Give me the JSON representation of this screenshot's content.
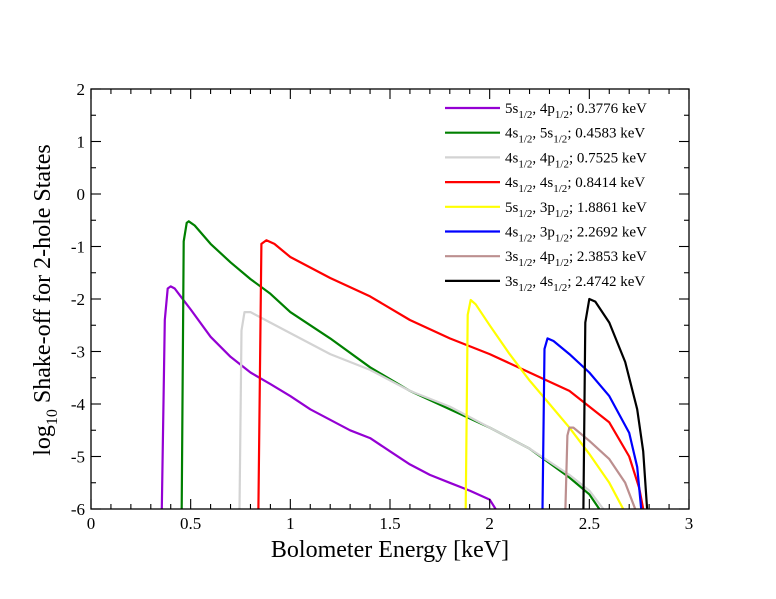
{
  "chart_data": {
    "type": "line",
    "xlabel": "Bolometer Energy  [keV]",
    "ylabel": "log10 Shake-off for 2-hole  States",
    "xlim": [
      0,
      3
    ],
    "ylim": [
      -6,
      2
    ],
    "x_ticks": [
      "0",
      "0.5",
      "1",
      "1.5",
      "2",
      "2.5",
      "3"
    ],
    "y_ticks": [
      "2",
      "1",
      "0",
      "-1",
      "-2",
      "-3",
      "-4",
      "-5",
      "-6"
    ],
    "grid": false,
    "legend_position": "top-right",
    "series": [
      {
        "name": "5s1/2, 4p1/2; 0.3776 keV",
        "label": {
          "a": "5s",
          "s1": "1/2",
          "b": ", 4p",
          "s2": "1/2",
          "c": "; 0.3776 keV"
        },
        "color": "#9400d3",
        "points": [
          [
            0.355,
            -6.0
          ],
          [
            0.37,
            -2.4
          ],
          [
            0.385,
            -1.8
          ],
          [
            0.4,
            -1.76
          ],
          [
            0.42,
            -1.8
          ],
          [
            0.45,
            -1.95
          ],
          [
            0.5,
            -2.2
          ],
          [
            0.6,
            -2.72
          ],
          [
            0.7,
            -3.1
          ],
          [
            0.8,
            -3.4
          ],
          [
            0.9,
            -3.62
          ],
          [
            1.0,
            -3.85
          ],
          [
            1.1,
            -4.1
          ],
          [
            1.2,
            -4.3
          ],
          [
            1.3,
            -4.5
          ],
          [
            1.4,
            -4.65
          ],
          [
            1.5,
            -4.9
          ],
          [
            1.6,
            -5.15
          ],
          [
            1.7,
            -5.35
          ],
          [
            1.8,
            -5.5
          ],
          [
            1.9,
            -5.65
          ],
          [
            2.0,
            -5.82
          ],
          [
            2.03,
            -6.0
          ]
        ]
      },
      {
        "name": "4s1/2, 5s1/2; 0.4583 keV",
        "label": {
          "a": "4s",
          "s1": "1/2",
          "b": ", 5s",
          "s2": "1/2",
          "c": "; 0.4583 keV"
        },
        "color": "#008000",
        "points": [
          [
            0.455,
            -6.0
          ],
          [
            0.465,
            -0.9
          ],
          [
            0.48,
            -0.55
          ],
          [
            0.49,
            -0.52
          ],
          [
            0.52,
            -0.6
          ],
          [
            0.6,
            -0.95
          ],
          [
            0.7,
            -1.3
          ],
          [
            0.8,
            -1.62
          ],
          [
            0.9,
            -1.9
          ],
          [
            1.0,
            -2.25
          ],
          [
            1.2,
            -2.75
          ],
          [
            1.4,
            -3.3
          ],
          [
            1.6,
            -3.75
          ],
          [
            1.8,
            -4.1
          ],
          [
            2.0,
            -4.45
          ],
          [
            2.2,
            -4.85
          ],
          [
            2.4,
            -5.4
          ],
          [
            2.5,
            -5.72
          ],
          [
            2.55,
            -6.0
          ]
        ]
      },
      {
        "name": "4s1/2, 4p1/2; 0.7525 keV",
        "label": {
          "a": "4s",
          "s1": "1/2",
          "b": ", 4p",
          "s2": "1/2",
          "c": "; 0.7525 keV"
        },
        "color": "#d3d3d3",
        "points": [
          [
            0.745,
            -6.0
          ],
          [
            0.755,
            -2.6
          ],
          [
            0.77,
            -2.25
          ],
          [
            0.8,
            -2.25
          ],
          [
            0.9,
            -2.45
          ],
          [
            1.0,
            -2.65
          ],
          [
            1.2,
            -3.05
          ],
          [
            1.4,
            -3.35
          ],
          [
            1.6,
            -3.75
          ],
          [
            1.8,
            -4.05
          ],
          [
            2.0,
            -4.45
          ],
          [
            2.2,
            -4.85
          ],
          [
            2.4,
            -5.35
          ],
          [
            2.5,
            -5.65
          ],
          [
            2.57,
            -6.0
          ]
        ]
      },
      {
        "name": "4s1/2, 4s1/2;  0.8414 keV",
        "label": {
          "a": "4s",
          "s1": "1/2",
          "b": ", 4s",
          "s2": "1/2",
          "c": ";  0.8414 keV"
        },
        "color": "#ff0000",
        "points": [
          [
            0.84,
            -6.0
          ],
          [
            0.855,
            -0.95
          ],
          [
            0.88,
            -0.88
          ],
          [
            0.92,
            -0.95
          ],
          [
            1.0,
            -1.2
          ],
          [
            1.2,
            -1.6
          ],
          [
            1.4,
            -1.95
          ],
          [
            1.6,
            -2.4
          ],
          [
            1.8,
            -2.75
          ],
          [
            2.0,
            -3.05
          ],
          [
            2.2,
            -3.4
          ],
          [
            2.4,
            -3.75
          ],
          [
            2.6,
            -4.35
          ],
          [
            2.7,
            -5.0
          ],
          [
            2.75,
            -5.6
          ],
          [
            2.77,
            -6.0
          ]
        ]
      },
      {
        "name": "5s1/2, 3p1/2; 1.8861 keV",
        "label": {
          "a": "5s",
          "s1": "1/2",
          "b": ", 3p",
          "s2": "1/2",
          "c": "; 1.8861 keV"
        },
        "color": "#ffff00",
        "points": [
          [
            1.88,
            -6.0
          ],
          [
            1.89,
            -2.3
          ],
          [
            1.905,
            -2.02
          ],
          [
            1.93,
            -2.1
          ],
          [
            2.0,
            -2.5
          ],
          [
            2.1,
            -3.05
          ],
          [
            2.2,
            -3.55
          ],
          [
            2.3,
            -4.0
          ],
          [
            2.4,
            -4.45
          ],
          [
            2.5,
            -4.95
          ],
          [
            2.6,
            -5.5
          ],
          [
            2.67,
            -6.0
          ]
        ]
      },
      {
        "name": "4s1/2, 3p1/2;  2.2692 keV",
        "label": {
          "a": "4s",
          "s1": "1/2",
          "b": ", 3p",
          "s2": "1/2",
          "c": ";  2.2692 keV"
        },
        "color": "#0000ff",
        "points": [
          [
            2.265,
            -6.0
          ],
          [
            2.275,
            -2.95
          ],
          [
            2.29,
            -2.75
          ],
          [
            2.32,
            -2.8
          ],
          [
            2.4,
            -3.05
          ],
          [
            2.5,
            -3.4
          ],
          [
            2.6,
            -3.85
          ],
          [
            2.7,
            -4.55
          ],
          [
            2.74,
            -5.2
          ],
          [
            2.76,
            -6.0
          ]
        ]
      },
      {
        "name": "3s1/2, 4p1/2;  2.3853 keV",
        "label": {
          "a": "3s",
          "s1": "1/2",
          "b": ", 4p",
          "s2": "1/2",
          "c": ";  2.3853 keV"
        },
        "color": "#bc8f8f",
        "points": [
          [
            2.38,
            -6.0
          ],
          [
            2.39,
            -4.6
          ],
          [
            2.4,
            -4.45
          ],
          [
            2.42,
            -4.45
          ],
          [
            2.5,
            -4.7
          ],
          [
            2.6,
            -5.05
          ],
          [
            2.68,
            -5.5
          ],
          [
            2.73,
            -6.0
          ]
        ]
      },
      {
        "name": "3s1/2, 4s1/2;  2.4742 keV",
        "label": {
          "a": "3s",
          "s1": "1/2",
          "b": ", 4s",
          "s2": "1/2",
          "c": ";  2.4742 keV"
        },
        "color": "#000000",
        "points": [
          [
            2.47,
            -6.0
          ],
          [
            2.48,
            -2.45
          ],
          [
            2.5,
            -2.0
          ],
          [
            2.53,
            -2.05
          ],
          [
            2.6,
            -2.45
          ],
          [
            2.68,
            -3.2
          ],
          [
            2.74,
            -4.1
          ],
          [
            2.77,
            -4.9
          ],
          [
            2.79,
            -6.0
          ]
        ]
      }
    ]
  }
}
